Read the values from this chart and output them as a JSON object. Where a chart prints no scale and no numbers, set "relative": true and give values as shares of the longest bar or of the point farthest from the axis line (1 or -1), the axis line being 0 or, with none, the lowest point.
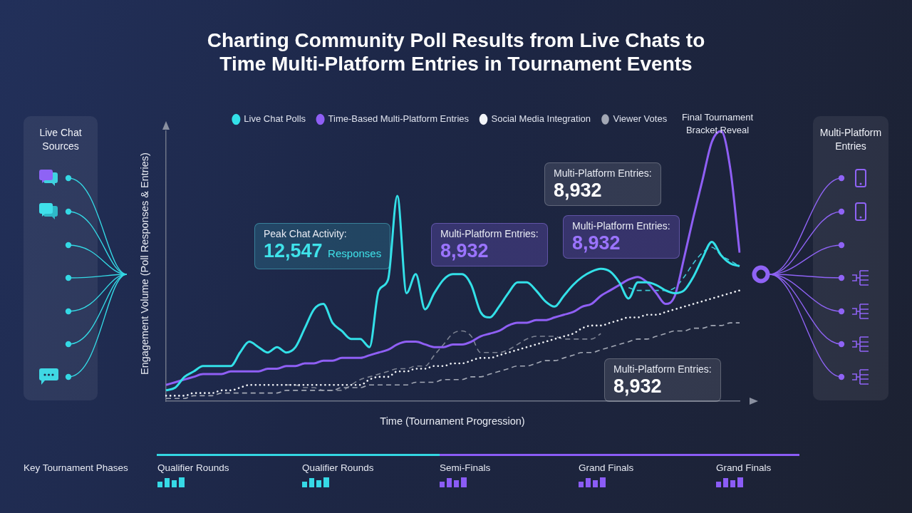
{
  "chart_data": {
    "type": "line",
    "title": "Charting Community Poll Results from Live Chats to Time Multi-Platform Entries in Tournament Events",
    "xlabel": "Time (Tournament Progression)",
    "ylabel": "Engagement Volume (Poll Responses & Entries)",
    "categories": [
      null,
      null,
      null,
      null,
      null,
      null,
      null,
      null,
      null,
      null,
      null,
      null,
      null,
      null,
      null,
      null,
      null,
      null,
      null,
      null,
      null,
      null,
      null,
      null,
      null,
      null,
      null,
      null,
      null,
      null,
      null,
      null,
      null,
      null,
      null,
      null,
      null,
      null,
      null,
      null,
      null,
      null,
      null,
      null,
      null,
      null,
      null,
      null,
      null,
      null,
      null,
      null,
      null,
      null,
      null,
      null,
      null,
      null,
      null,
      null,
      null,
      null,
      null
    ],
    "relative": true,
    "legend": "top",
    "marker": "none",
    "series": [
      {
        "name": "Live Chat Polls",
        "color": "#33e0e8",
        "line_style": "solid",
        "values": [
          0.04,
          0.05,
          0.09,
          0.11,
          0.13,
          0.13,
          0.13,
          0.13,
          0.18,
          0.22,
          0.2,
          0.18,
          0.2,
          0.18,
          0.2,
          0.27,
          0.34,
          0.36,
          0.29,
          0.26,
          0.23,
          0.23,
          0.2,
          0.41,
          0.45,
          0.76,
          0.4,
          0.47,
          0.34,
          0.4,
          0.45,
          0.47,
          0.47,
          0.43,
          0.33,
          0.31,
          0.35,
          0.4,
          0.44,
          0.44,
          0.41,
          0.37,
          0.35,
          0.39,
          0.43,
          0.46,
          0.48,
          0.49,
          0.48,
          0.44,
          0.38,
          0.44,
          0.44,
          0.43,
          0.41,
          0.4,
          0.41,
          0.46,
          0.53,
          0.59,
          0.54,
          0.51,
          0.5
        ]
      },
      {
        "name": "Time-Based Multi-Platform Entries",
        "color": "#8f5ff5",
        "line_style": "solid",
        "values": [
          0.06,
          0.07,
          0.08,
          0.09,
          0.1,
          0.1,
          0.1,
          0.11,
          0.11,
          0.11,
          0.11,
          0.12,
          0.12,
          0.13,
          0.13,
          0.14,
          0.14,
          0.15,
          0.15,
          0.16,
          0.16,
          0.16,
          0.17,
          0.18,
          0.19,
          0.21,
          0.22,
          0.22,
          0.21,
          0.2,
          0.2,
          0.21,
          0.21,
          0.22,
          0.24,
          0.25,
          0.26,
          0.28,
          0.29,
          0.29,
          0.3,
          0.3,
          0.31,
          0.32,
          0.33,
          0.35,
          0.36,
          0.39,
          0.41,
          0.43,
          0.45,
          0.46,
          0.44,
          0.4,
          0.36,
          0.39,
          0.53,
          0.68,
          0.82,
          0.96,
          1,
          0.86,
          0.55
        ]
      },
      {
        "name": "Social Media Integration",
        "color": "#f2f4f8",
        "line_style": "dotted",
        "values": [
          0.02,
          0.02,
          0.02,
          0.03,
          0.03,
          0.03,
          0.04,
          0.04,
          0.05,
          0.06,
          0.06,
          0.06,
          0.06,
          0.06,
          0.06,
          0.06,
          0.06,
          0.06,
          0.06,
          0.06,
          0.06,
          0.06,
          0.08,
          0.09,
          0.09,
          0.11,
          0.11,
          0.12,
          0.12,
          0.13,
          0.13,
          0.14,
          0.14,
          0.15,
          0.16,
          0.16,
          0.17,
          0.18,
          0.19,
          0.2,
          0.21,
          0.22,
          0.23,
          0.24,
          0.25,
          0.27,
          0.28,
          0.28,
          0.29,
          0.3,
          0.31,
          0.31,
          0.32,
          0.32,
          0.33,
          0.34,
          0.35,
          0.36,
          0.37,
          0.38,
          0.39,
          0.4,
          0.41
        ]
      },
      {
        "name": "Viewer Votes",
        "color": "#a3a8b5",
        "line_style": "dashed",
        "values": [
          0.01,
          0.01,
          0.01,
          0.02,
          0.02,
          0.02,
          0.03,
          0.03,
          0.03,
          0.03,
          0.03,
          0.03,
          0.03,
          0.04,
          0.04,
          0.04,
          0.04,
          0.04,
          0.04,
          0.05,
          0.05,
          0.05,
          0.06,
          0.06,
          0.06,
          0.06,
          0.06,
          0.07,
          0.07,
          0.07,
          0.08,
          0.08,
          0.08,
          0.09,
          0.09,
          0.1,
          0.11,
          0.12,
          0.13,
          0.13,
          0.14,
          0.15,
          0.15,
          0.16,
          0.17,
          0.18,
          0.18,
          0.19,
          0.2,
          0.21,
          0.22,
          0.23,
          0.23,
          0.24,
          0.25,
          0.26,
          0.26,
          0.27,
          0.27,
          0.28,
          0.28,
          0.29,
          0.29
        ]
      },
      {
        "color": "#7c8292",
        "line_style": "dashed",
        "values": [
          null,
          null,
          null,
          null,
          null,
          null,
          null,
          null,
          null,
          null,
          null,
          null,
          null,
          0.06,
          0.06,
          0.05,
          0.05,
          0.04,
          0.04,
          0.04,
          0.06,
          0.08,
          0.09,
          0.1,
          0.11,
          0.12,
          0.12,
          0.13,
          0.13,
          0.17,
          0.21,
          0.25,
          0.26,
          0.24,
          0.18,
          0.18,
          0.18,
          0.19,
          0.21,
          0.23,
          0.24,
          0.24,
          0.24,
          0.23,
          0.23,
          0.23,
          0.23,
          0.25,
          null,
          null,
          null,
          null,
          null,
          null,
          null,
          null,
          null,
          null,
          null,
          null,
          null,
          null,
          null
        ]
      },
      {
        "color": "#3fc9d6",
        "line_style": "dashed",
        "values": [
          null,
          null,
          null,
          null,
          null,
          null,
          null,
          null,
          null,
          null,
          null,
          null,
          null,
          null,
          null,
          null,
          null,
          null,
          null,
          null,
          null,
          null,
          null,
          null,
          null,
          null,
          null,
          null,
          null,
          null,
          null,
          null,
          null,
          null,
          null,
          null,
          null,
          null,
          null,
          null,
          null,
          null,
          null,
          null,
          null,
          null,
          null,
          null,
          null,
          null,
          0.42,
          0.41,
          0.41,
          0.41,
          0.41,
          0.42,
          0.46,
          0.51,
          0.55,
          0.57,
          0.54,
          0.52,
          0.5
        ]
      }
    ],
    "annotations": [
      "Final Tournament Bracket Reveal",
      "Live Chat Sources",
      "Multi-Platform Entries",
      "Peak Chat Activity:\n12,547 Responses",
      "Multi-Platform Entries:\n8,932",
      "Multi-Platform Entries:\n8,932",
      "Multi-Platform Entries:\n8,932",
      "Multi-Platform Entries:\n8,932",
      "Key Tournament Phases",
      "Qualifier Rounds",
      "Qualifier Rounds",
      "Semi-Finals",
      "Grand Finals",
      "Grand Finals"
    ]
  }
}
